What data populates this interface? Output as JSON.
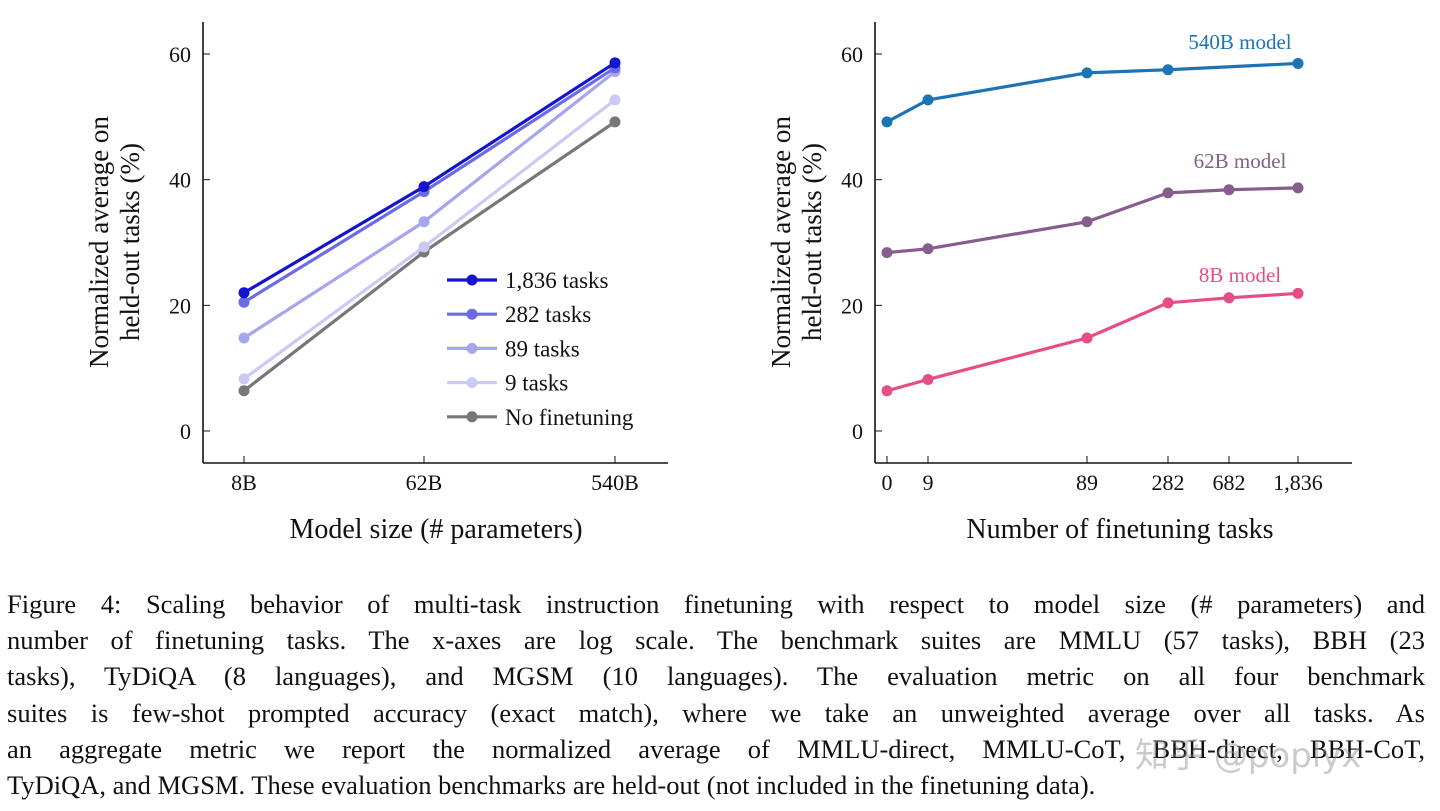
{
  "chart_data": [
    {
      "type": "line",
      "xlabel": "Model size (# parameters)",
      "ylabel": [
        "Normalized average on",
        "held-out tasks (%)"
      ],
      "x_scale": "log",
      "categories": [
        "8B",
        "62B",
        "540B"
      ],
      "yticks": [
        "0",
        "20",
        "40",
        "60"
      ],
      "ylim": [
        -5,
        65
      ],
      "legend_position": "bottom-right",
      "series": [
        {
          "name": "1,836 tasks",
          "color": "#1414cc",
          "values": [
            22.0,
            38.9,
            58.6
          ]
        },
        {
          "name": "282 tasks",
          "color": "#6b6be6",
          "values": [
            20.5,
            38.1,
            57.8
          ]
        },
        {
          "name": "89 tasks",
          "color": "#a6a6ee",
          "values": [
            14.8,
            33.3,
            57.2
          ]
        },
        {
          "name": "9 tasks",
          "color": "#cacaf6",
          "values": [
            8.3,
            29.3,
            52.7
          ]
        },
        {
          "name": "No finetuning",
          "color": "#777777",
          "values": [
            6.4,
            28.5,
            49.2
          ]
        }
      ]
    },
    {
      "type": "line",
      "xlabel": "Number of finetuning tasks",
      "ylabel": [
        "Normalized average on",
        "held-out tasks (%)"
      ],
      "x_scale": "log",
      "xticks": [
        "0",
        "9",
        "89",
        "282",
        "682",
        "1,836"
      ],
      "yticks": [
        "0",
        "20",
        "40",
        "60"
      ],
      "ylim": [
        -5,
        65
      ],
      "series": [
        {
          "name": "540B model",
          "color": "#1b74b4",
          "x": [
            0,
            9,
            89,
            282,
            1836
          ],
          "values": [
            49.2,
            52.7,
            57.0,
            57.5,
            58.5
          ]
        },
        {
          "name": "62B model",
          "color": "#865d8c",
          "x": [
            0,
            9,
            89,
            282,
            682,
            1836
          ],
          "values": [
            28.4,
            29.0,
            33.3,
            37.9,
            38.4,
            38.7
          ]
        },
        {
          "name": "8B model",
          "color": "#e64d88",
          "x": [
            0,
            9,
            89,
            282,
            682,
            1836
          ],
          "values": [
            6.4,
            8.2,
            14.8,
            20.4,
            21.2,
            21.9
          ]
        }
      ]
    }
  ],
  "caption": [
    "Figure 4: Scaling behavior of multi-task instruction finetuning with respect to model size (# parameters) and",
    "number of finetuning tasks. The x-axes are log scale. The benchmark suites are MMLU (57 tasks), BBH (23",
    "tasks), TyDiQA (8 languages), and MGSM (10 languages). The evaluation metric on all four benchmark",
    "suites is few-shot prompted accuracy (exact match), where we take an unweighted average over all tasks. As",
    "an aggregate metric we report the normalized average of MMLU-direct, MMLU-CoT, BBH-direct, BBH-CoT,",
    "TyDiQA, and MGSM. These evaluation benchmarks are held-out (not included in the finetuning data)."
  ],
  "watermark": "知乎 @poplyx"
}
